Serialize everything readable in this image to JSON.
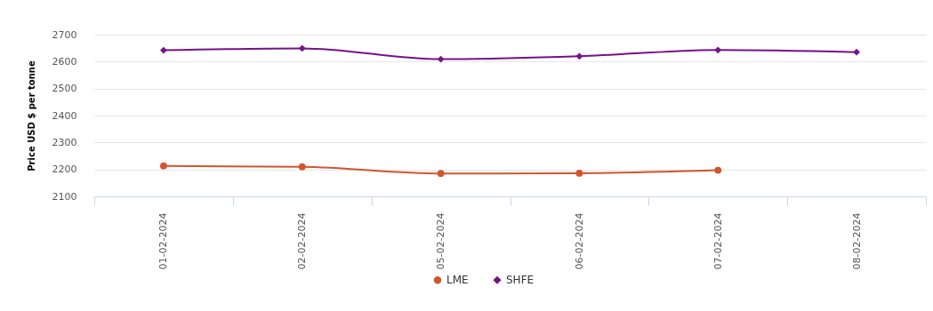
{
  "chart_data": {
    "type": "line",
    "ylabel": "Price USD $ per tonne",
    "categories": [
      "01-02-2024",
      "02-02-2024",
      "05-02-2024",
      "06-02-2024",
      "07-02-2024",
      "08-02-2024"
    ],
    "series": [
      {
        "name": "LME",
        "color": "#d4542c",
        "marker": "circle",
        "values": [
          2213,
          2210,
          2185,
          2186,
          2197,
          null
        ]
      },
      {
        "name": "SHFE",
        "color": "#76118a",
        "marker": "diamond",
        "values": [
          2642,
          2649,
          2609,
          2620,
          2643,
          2635
        ]
      }
    ],
    "ylim": [
      2100,
      2700
    ],
    "yticks": [
      2100,
      2200,
      2300,
      2400,
      2500,
      2600,
      2700
    ],
    "grid": "y",
    "legend": "bottom"
  }
}
